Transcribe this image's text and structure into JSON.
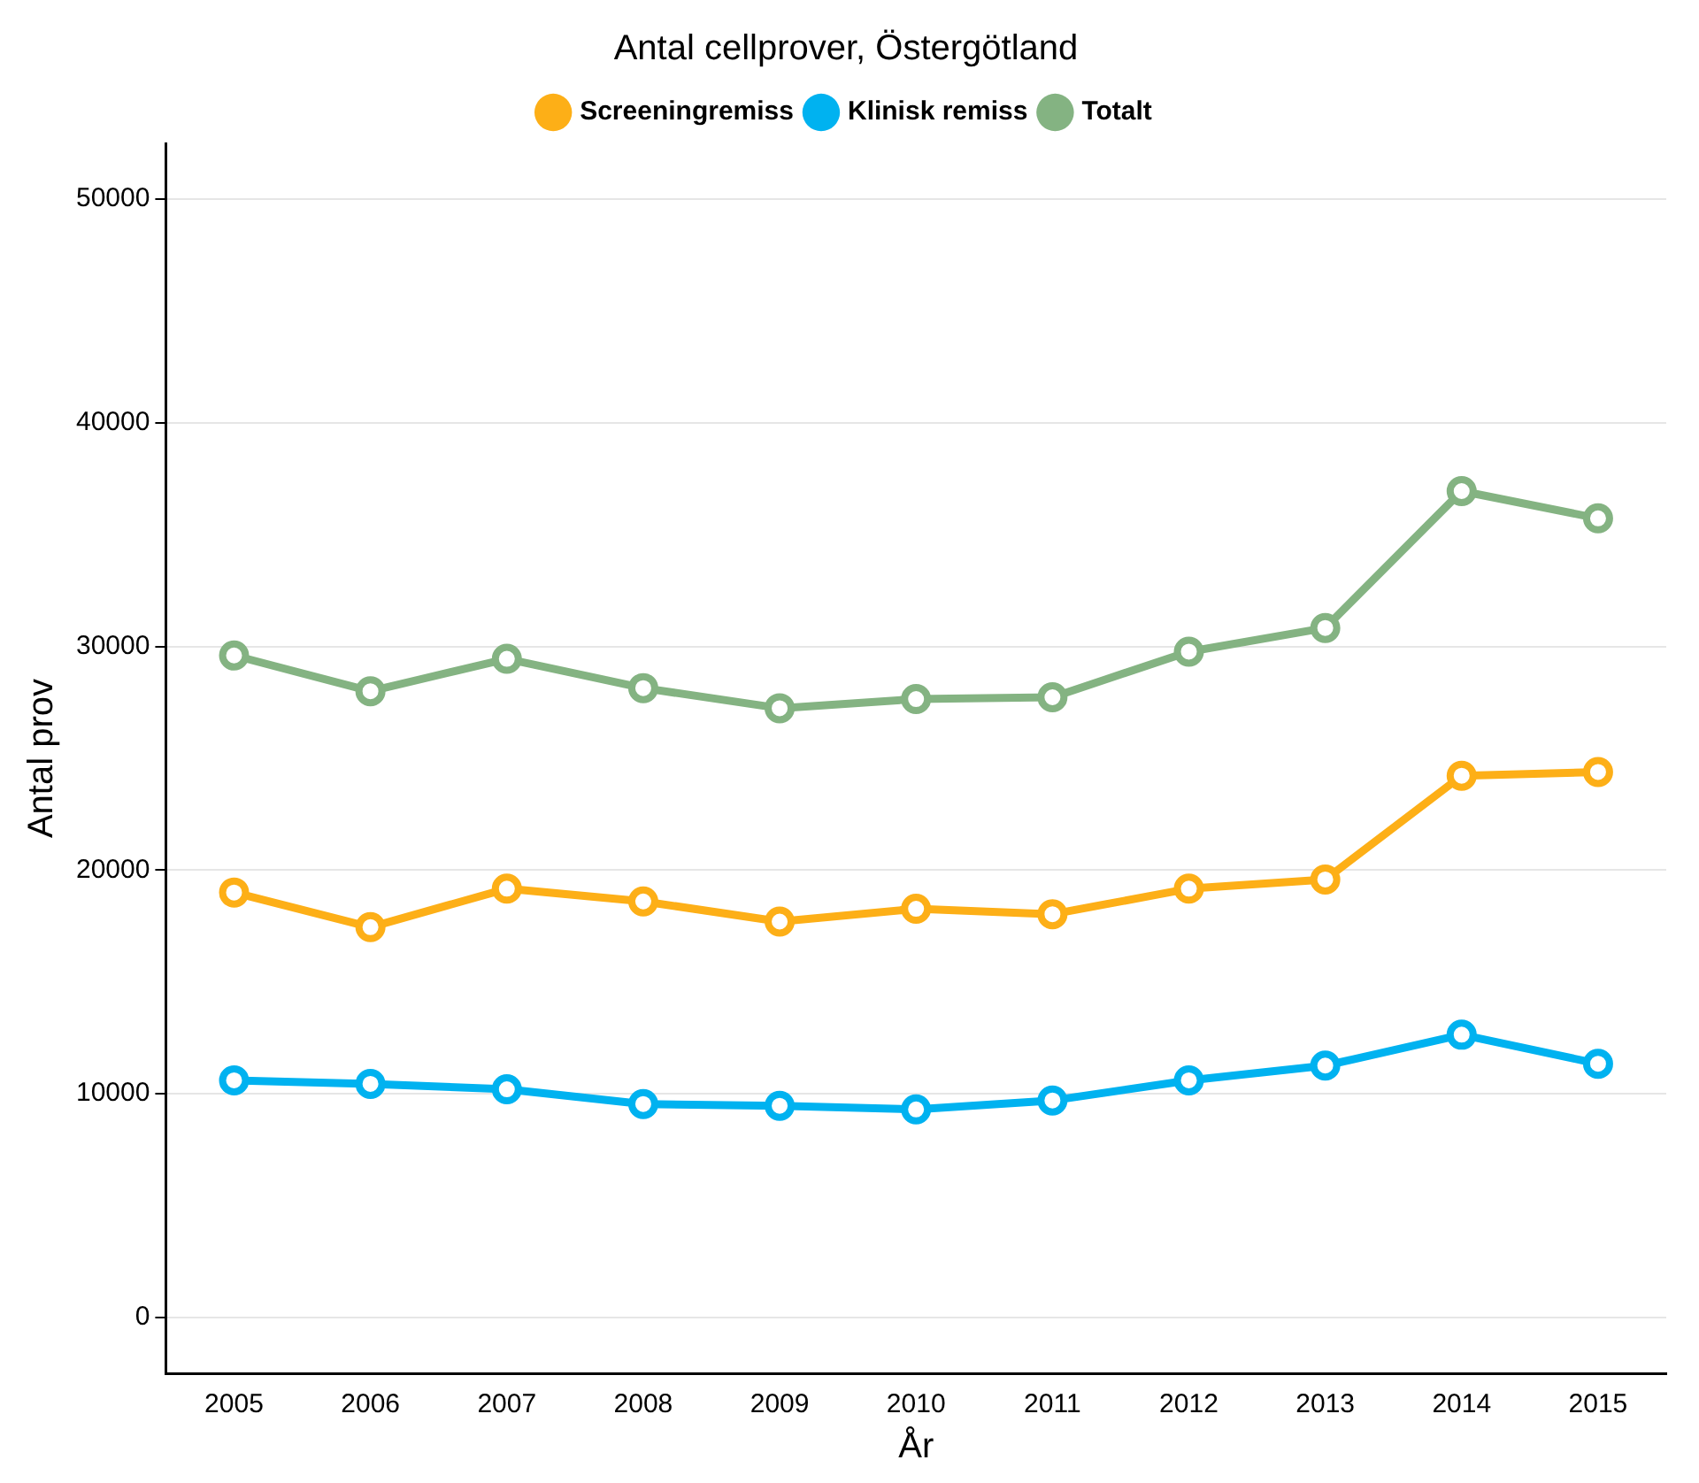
{
  "chart_data": {
    "type": "line",
    "title": "Antal cellprover, Östergötland",
    "xlabel": "År",
    "ylabel": "Antal prov",
    "categories": [
      "2005",
      "2006",
      "2007",
      "2008",
      "2009",
      "2010",
      "2011",
      "2012",
      "2013",
      "2014",
      "2015"
    ],
    "series": [
      {
        "name": "Screeningremiss",
        "color": "#fdaf17",
        "values": [
          19000,
          17450,
          19170,
          18600,
          17700,
          18270,
          18030,
          19170,
          19580,
          24220,
          24390
        ]
      },
      {
        "name": "Klinisk remiss",
        "color": "#00b2f0",
        "values": [
          10600,
          10440,
          10200,
          9540,
          9460,
          9300,
          9700,
          10600,
          11260,
          12640,
          11340
        ]
      },
      {
        "name": "Totalt",
        "color": "#84b382",
        "values": [
          29600,
          28000,
          29450,
          28140,
          27240,
          27650,
          27730,
          29770,
          30830,
          36950,
          35730
        ]
      }
    ],
    "ylim": [
      -2500,
      52500
    ],
    "yticks": [
      0,
      10000,
      20000,
      30000,
      40000,
      50000
    ],
    "grid": "y",
    "legend": "top",
    "marker": "circle",
    "line_style": "solid"
  }
}
